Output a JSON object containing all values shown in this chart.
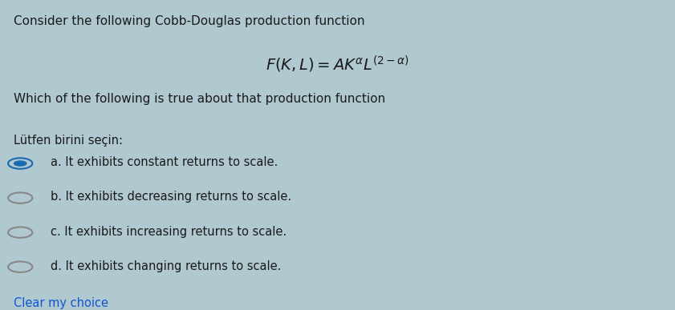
{
  "title_line1": "Consider the following Cobb-Douglas production function",
  "formula": "$F(K, L) = AK^{\\alpha}L^{(2-\\alpha)}$",
  "subtitle": "Which of the following is true about that production function",
  "prompt": "Lütfen birini seçin:",
  "options": [
    {
      "label": "a.",
      "text": "It exhibits constant returns to scale.",
      "selected": true
    },
    {
      "label": "b.",
      "text": "It exhibits decreasing returns to scale.",
      "selected": false
    },
    {
      "label": "c.",
      "text": "It exhibits increasing returns to scale.",
      "selected": false
    },
    {
      "label": "d.",
      "text": "It exhibits changing returns to scale.",
      "selected": false
    }
  ],
  "clear_choice": "Clear my choice",
  "bg_color": "#b0c8d0",
  "text_color": "#1a1a1a",
  "selected_color": "#1a6aaf",
  "link_color": "#1155cc",
  "font_size_title": 11,
  "font_size_formula": 14,
  "font_size_body": 10.5,
  "font_size_prompt": 10.5
}
